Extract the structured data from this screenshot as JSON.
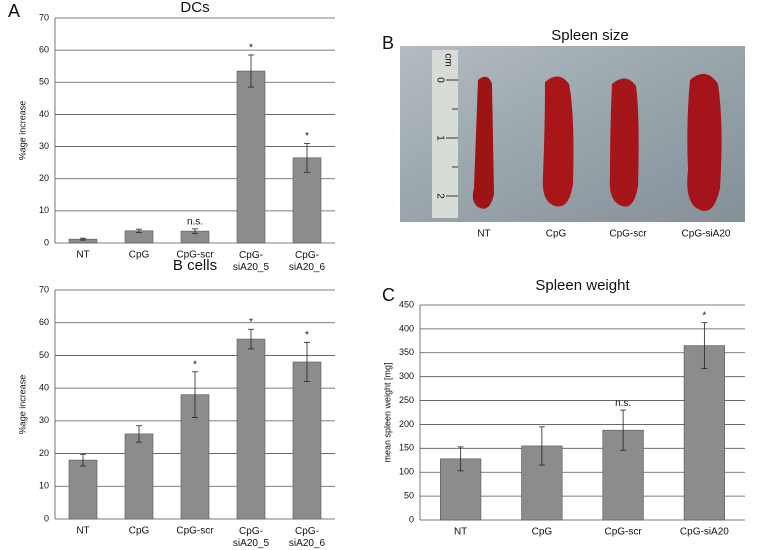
{
  "panel_labels": [
    "A",
    "B",
    "C"
  ],
  "photo": {
    "title": "Spleen size",
    "labels": [
      "NT",
      "CpG",
      "CpG-scr",
      "CpG-siA20"
    ],
    "ruler_unit": "cm",
    "ruler_marks": [
      "0",
      "1",
      "2"
    ]
  },
  "chart_data": [
    {
      "type": "bar",
      "title": "DCs",
      "y_label": "%age increase",
      "categories": [
        "NT",
        "CpG",
        "CpG-scr",
        "CpG-\nsiA20_5",
        "CpG-\nsiA20_6"
      ],
      "values": [
        1.2,
        3.8,
        3.7,
        53.5,
        26.5
      ],
      "errors": [
        0.3,
        0.5,
        0.7,
        5,
        4.5
      ],
      "annotations": [
        null,
        null,
        "n.s.",
        "*",
        "*"
      ],
      "color": "#8c8c8c",
      "ylim": [
        0,
        70
      ],
      "yticks": [
        0,
        10,
        20,
        30,
        40,
        50,
        60,
        70
      ],
      "grid": true
    },
    {
      "type": "bar",
      "title": "B cells",
      "y_label": "%age increase",
      "categories": [
        "NT",
        "CpG",
        "CpG-scr",
        "CpG-\nsiA20_5",
        "CpG-\nsiA20_6"
      ],
      "values": [
        18,
        26,
        38,
        55,
        48
      ],
      "errors": [
        1.8,
        2.5,
        7,
        3,
        6
      ],
      "annotations": [
        null,
        null,
        "*",
        "*",
        "*"
      ],
      "color": "#8c8c8c",
      "ylim": [
        0,
        70
      ],
      "yticks": [
        0,
        10,
        20,
        30,
        40,
        50,
        60,
        70
      ],
      "grid": true
    },
    {
      "type": "bar",
      "title": "Spleen weight",
      "y_label": "mean spleen weight [mg]",
      "categories": [
        "NT",
        "CpG",
        "CpG-scr",
        "CpG-siA20"
      ],
      "values": [
        128,
        155,
        188,
        365
      ],
      "errors": [
        25,
        40,
        42,
        48
      ],
      "annotations": [
        null,
        null,
        "n.s.",
        "*"
      ],
      "color": "#8c8c8c",
      "ylim": [
        0,
        450
      ],
      "yticks": [
        0,
        50,
        100,
        150,
        200,
        250,
        300,
        350,
        400,
        450
      ],
      "grid": true
    }
  ]
}
